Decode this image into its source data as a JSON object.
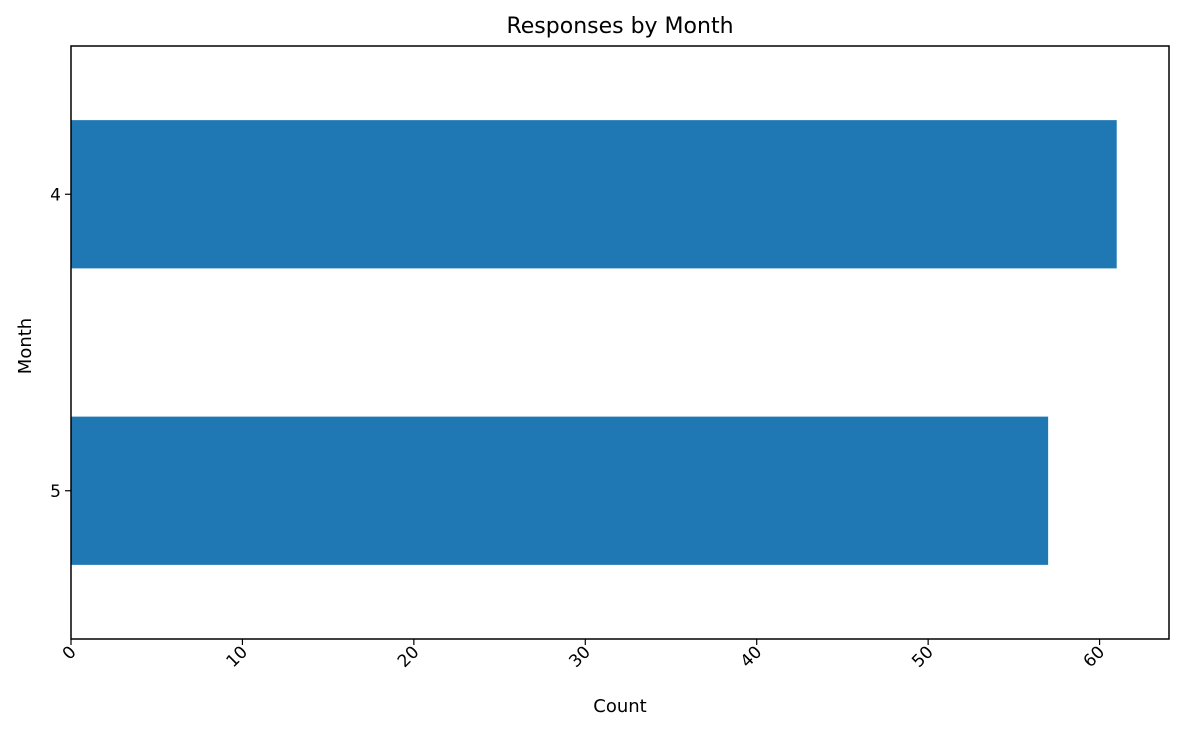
{
  "chart_data": {
    "type": "bar",
    "orientation": "horizontal",
    "title": "Responses by Month",
    "xlabel": "Count",
    "ylabel": "Month",
    "categories": [
      "4",
      "5"
    ],
    "values": [
      61,
      57
    ],
    "xlim": [
      0,
      64.05
    ],
    "xticks": [
      0,
      10,
      20,
      30,
      40,
      50,
      60
    ],
    "xtick_rotation": 45,
    "grid": false,
    "legend": "none",
    "bar_color": "#1f77b4",
    "axis_color": "#000000"
  }
}
